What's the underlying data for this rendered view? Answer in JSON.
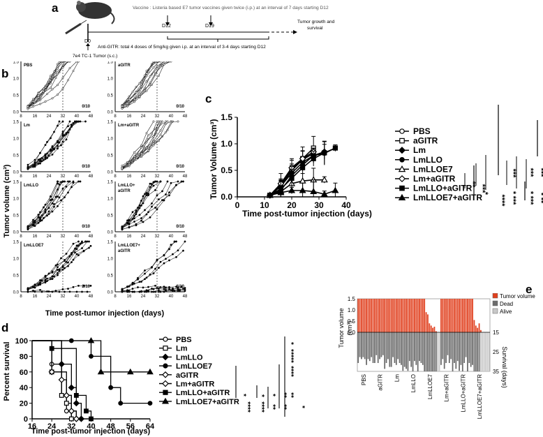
{
  "panel_letters": {
    "a": "a",
    "b": "b",
    "c": "c",
    "d": "d",
    "e": "e"
  },
  "schematic": {
    "vaccine": "Vaccine : Listeria based E7 tumor vaccines given twice (i.p.) at an interval of 7 days starting D12",
    "d0": "D0",
    "d12": "D12",
    "d19": "D19",
    "tumor": "7e4 TC-1 Tumor (s.c.)",
    "outcome_1": "Tumor  growth and",
    "outcome_2": "survival",
    "anti_gitr": "Anti-GITR: total 4 doses of 5mg/kg given i.p. at an interval of 3-4 days starting D12"
  },
  "panel_b": {
    "ylabel": "Tumor volume (cm³)",
    "xlabel": "Time post-tumor injection (days)",
    "xticks": [
      "8",
      "16",
      "24",
      "32",
      "40",
      "48"
    ],
    "yticks": [
      "0.0",
      "0.5",
      "1.0",
      "1.5"
    ],
    "panels": [
      {
        "title": "PBS",
        "ratio": "0/10"
      },
      {
        "title": "aGITR",
        "ratio": "0/10"
      },
      {
        "title": "Lm",
        "ratio": "0/10"
      },
      {
        "title": "Lm+aGITR",
        "ratio": "0/10"
      },
      {
        "title": "LmLLO",
        "ratio": "0/10"
      },
      {
        "title": "LmLLO+",
        "title2": "aGITR",
        "ratio": "0/10"
      },
      {
        "title": "LmLLOE7",
        "ratio": "2/10"
      },
      {
        "title": "LmLLOE7+",
        "title2": "aGITR",
        "ratio": "6/10"
      }
    ]
  },
  "chart_data": [
    {
      "panel": "c",
      "type": "line",
      "xlabel": "Time post-tumor injection (days)",
      "ylabel": "Tumor Volume (cm³)",
      "xlim": [
        0,
        40
      ],
      "ylim": [
        0,
        1.5
      ],
      "xticks": [
        "0",
        "10",
        "20",
        "30",
        "40"
      ],
      "yticks": [
        "0.0",
        "0.5",
        "1.0",
        "1.5"
      ],
      "legend_position": "right",
      "series": [
        {
          "name": "PBS",
          "marker": "circle-open",
          "x": [
            12,
            16,
            20,
            24,
            28
          ],
          "y": [
            0.03,
            0.2,
            0.5,
            0.7,
            0.82
          ]
        },
        {
          "name": "aGITR",
          "marker": "square-open",
          "x": [
            12,
            16,
            20,
            24,
            28
          ],
          "y": [
            0.03,
            0.22,
            0.52,
            0.72,
            0.92
          ]
        },
        {
          "name": "Lm",
          "marker": "diamond-filled",
          "x": [
            12,
            16,
            20,
            24,
            28,
            32
          ],
          "y": [
            0.03,
            0.2,
            0.45,
            0.65,
            0.78,
            0.85
          ]
        },
        {
          "name": "LmLLO",
          "marker": "circle-filled",
          "x": [
            12,
            16,
            20,
            24,
            28,
            32,
            36
          ],
          "y": [
            0.03,
            0.12,
            0.4,
            0.6,
            0.78,
            0.82,
            0.92
          ]
        },
        {
          "name": "LmLLOE7",
          "marker": "triangle-open",
          "x": [
            12,
            16,
            20,
            24,
            28,
            32
          ],
          "y": [
            0.03,
            0.1,
            0.25,
            0.3,
            0.32,
            0.32
          ]
        },
        {
          "name": "Lm+aGITR",
          "marker": "diamond-open",
          "x": [
            12,
            16,
            20,
            24,
            28
          ],
          "y": [
            0.03,
            0.25,
            0.55,
            0.72,
            0.85
          ]
        },
        {
          "name": "LmLLO+aGITR",
          "marker": "square-filled",
          "x": [
            12,
            16,
            20,
            24,
            28,
            32,
            36
          ],
          "y": [
            0.03,
            0.15,
            0.35,
            0.55,
            0.72,
            0.83,
            0.92
          ]
        },
        {
          "name": "LmLLOE7+aGITR",
          "marker": "triangle-filled",
          "x": [
            12,
            16,
            20,
            24,
            28,
            32,
            36
          ],
          "y": [
            0.03,
            0.08,
            0.12,
            0.12,
            0.1,
            0.05,
            0.12
          ]
        }
      ],
      "significance": [
        "**",
        "***",
        "***",
        "***",
        "*",
        "*",
        "*",
        "****",
        "*",
        "***",
        "***",
        "**",
        "***"
      ]
    },
    {
      "panel": "d",
      "type": "line",
      "xlabel": "Time post-tumor injection (days)",
      "ylabel": "Percent survival",
      "xlim": [
        16,
        64
      ],
      "ylim": [
        0,
        100
      ],
      "xticks": [
        "16",
        "24",
        "32",
        "40",
        "48",
        "56",
        "64"
      ],
      "yticks": [
        "0",
        "20",
        "40",
        "60",
        "80",
        "100"
      ],
      "legend_position": "right",
      "series": [
        {
          "name": "PBS",
          "marker": "circle-open",
          "x": [
            16,
            24,
            28,
            30,
            32
          ],
          "y": [
            100,
            70,
            30,
            10,
            0
          ]
        },
        {
          "name": "Lm",
          "marker": "square-open",
          "x": [
            16,
            24,
            28,
            30,
            32
          ],
          "y": [
            100,
            60,
            30,
            20,
            0
          ]
        },
        {
          "name": "LmLLO",
          "marker": "diamond-filled",
          "x": [
            16,
            28,
            32,
            34,
            36
          ],
          "y": [
            100,
            70,
            40,
            20,
            0
          ]
        },
        {
          "name": "LmLLOE7",
          "marker": "circle-filled",
          "x": [
            16,
            32,
            40,
            48,
            52,
            64
          ],
          "y": [
            100,
            100,
            80,
            40,
            20,
            20
          ]
        },
        {
          "name": "aGITR",
          "marker": "diamond-open",
          "x": [
            16,
            24,
            30,
            32,
            34
          ],
          "y": [
            100,
            60,
            30,
            10,
            0
          ]
        },
        {
          "name": "Lm+aGITR",
          "marker": "diamond-open",
          "x": [
            16,
            28,
            30,
            32,
            34
          ],
          "y": [
            100,
            50,
            30,
            10,
            0
          ]
        },
        {
          "name": "LmLLO+aGITR",
          "marker": "square-filled",
          "x": [
            16,
            24,
            34,
            38,
            40
          ],
          "y": [
            100,
            90,
            30,
            10,
            0
          ]
        },
        {
          "name": "LmLLOE7+aGITR",
          "marker": "triangle-filled",
          "x": [
            16,
            40,
            44,
            56,
            64
          ],
          "y": [
            100,
            100,
            60,
            60,
            60
          ]
        }
      ],
      "significance": [
        "*",
        "*",
        "*",
        "****",
        "**",
        "****",
        "****",
        "**",
        "****",
        "**",
        "**",
        "*",
        "*",
        "*"
      ]
    },
    {
      "panel": "e",
      "type": "bar",
      "ylabel_top": "Tumor volume",
      "ylabel_top_unit": "(cm³)",
      "ylabel_bottom": "Survival (days)",
      "yticks_top": [
        "1.5",
        "1.0",
        "0.5",
        "0.0"
      ],
      "yticks_bottom": [
        "15",
        "25",
        "35"
      ],
      "groups": [
        "PBS",
        "aGITR",
        "Lm",
        "LmLLO",
        "LmLLOE7",
        "Lm+aGITR",
        "LmLLO+aGITR",
        "LmLLOE7+aGITR"
      ],
      "legend": [
        {
          "label": "Tumor volume",
          "color": "#e0401e"
        },
        {
          "label": "Dead",
          "color": "#6b6b6b"
        },
        {
          "label": "Alive",
          "color": "#c8c8c8"
        }
      ],
      "tumor_volume": [
        [
          1.5,
          1.5,
          1.5,
          1.5,
          1.5,
          1.5,
          1.5,
          1.5,
          1.5,
          1.5
        ],
        [
          1.5,
          1.5,
          1.5,
          1.5,
          1.5,
          1.5,
          1.5,
          1.5,
          1.5,
          1.5
        ],
        [
          1.5,
          1.5,
          1.5,
          1.5,
          1.5,
          1.5,
          1.5,
          1.5,
          1.5,
          1.5
        ],
        [
          1.5,
          1.5,
          1.5,
          1.5,
          1.5,
          1.5,
          1.5,
          1.5,
          1.5,
          1.5
        ],
        [
          1.5,
          0.9,
          0.8,
          0.4,
          0.3,
          0.2,
          0.25,
          0.05,
          0,
          0
        ],
        [
          1.5,
          1.5,
          1.5,
          1.5,
          1.5,
          1.5,
          1.5,
          1.5,
          1.5,
          1.5
        ],
        [
          1.5,
          1.5,
          1.5,
          1.5,
          1.5,
          1.5,
          1.5,
          1.5,
          1.5,
          1.5
        ],
        [
          0.55,
          0.3,
          0.2,
          0.4,
          0.1,
          0,
          0,
          0,
          0,
          0
        ]
      ],
      "survival_days": [
        [
          30,
          27,
          28,
          27,
          28,
          31,
          28,
          29,
          27,
          30
        ],
        [
          30,
          26,
          30,
          28,
          27,
          26,
          33,
          30,
          28,
          32
        ],
        [
          32,
          27,
          30,
          31,
          28,
          30,
          31,
          34,
          32,
          33
        ],
        [
          34,
          29,
          32,
          35,
          29,
          31,
          35,
          29,
          30,
          31
        ],
        [
          35,
          35,
          35,
          35,
          35,
          35,
          35,
          35,
          35,
          35
        ],
        [
          31,
          28,
          33,
          30,
          26,
          30,
          28,
          35,
          30,
          33
        ],
        [
          29,
          34,
          31,
          35,
          30,
          27,
          35,
          30,
          32,
          31
        ],
        [
          35,
          35,
          35,
          35,
          35,
          35,
          35,
          35,
          35,
          35
        ]
      ],
      "alive": [
        [
          0,
          0,
          0,
          0,
          0,
          0,
          0,
          0,
          0,
          0
        ],
        [
          0,
          0,
          0,
          0,
          0,
          0,
          0,
          0,
          0,
          0
        ],
        [
          0,
          0,
          0,
          0,
          0,
          0,
          0,
          0,
          0,
          0
        ],
        [
          0,
          0,
          0,
          0,
          0,
          0,
          0,
          0,
          0,
          0
        ],
        [
          0,
          0,
          0,
          0,
          0,
          0,
          0,
          0,
          1,
          1
        ],
        [
          0,
          0,
          0,
          0,
          0,
          0,
          0,
          0,
          0,
          0
        ],
        [
          0,
          0,
          0,
          0,
          0,
          0,
          0,
          0,
          0,
          0
        ],
        [
          0,
          0,
          0,
          0,
          1,
          1,
          1,
          1,
          1,
          1
        ]
      ]
    }
  ]
}
